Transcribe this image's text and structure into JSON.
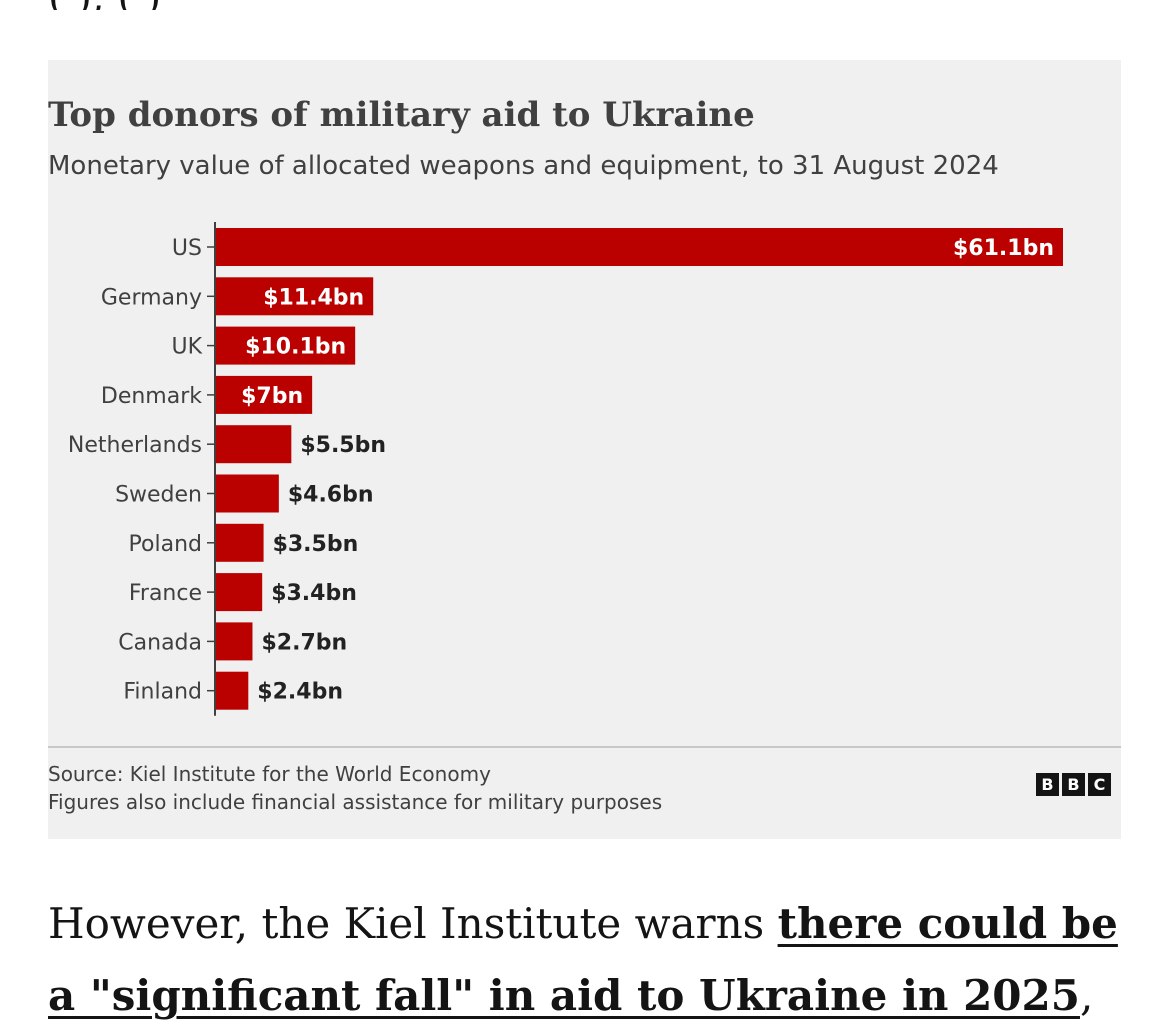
{
  "top_text_fragment": "(            ),                                                         (           )",
  "chart_data": {
    "type": "bar",
    "orientation": "horizontal",
    "title": "Top donors of military aid to Ukraine",
    "subtitle": "Monetary value of allocated weapons and equipment, to 31 August 2024",
    "categories": [
      "US",
      "Germany",
      "UK",
      "Denmark",
      "Netherlands",
      "Sweden",
      "Poland",
      "France",
      "Canada",
      "Finland"
    ],
    "values": [
      61.1,
      11.4,
      10.1,
      7,
      5.5,
      4.6,
      3.5,
      3.4,
      2.7,
      2.4
    ],
    "labels": [
      "$61.1bn",
      "$11.4bn",
      "$10.1bn",
      "$7bn",
      "$5.5bn",
      "$4.6bn",
      "$3.5bn",
      "$3.4bn",
      "$2.7bn",
      "$2.4bn"
    ],
    "unit": "$bn",
    "xlim": [
      0,
      61.1
    ],
    "bar_color": "#bb0000",
    "grid": false
  },
  "footer": {
    "source": "Source: Kiel Institute for the World Economy",
    "note": "Figures also include financial assistance for military purposes",
    "logo": [
      "B",
      "B",
      "C"
    ]
  },
  "article": {
    "text_before_link": "However, the Kiel Institute warns ",
    "link_text": "there could be a \"significant fall\" in aid to Ukraine in 2025",
    "text_after_link": ","
  }
}
